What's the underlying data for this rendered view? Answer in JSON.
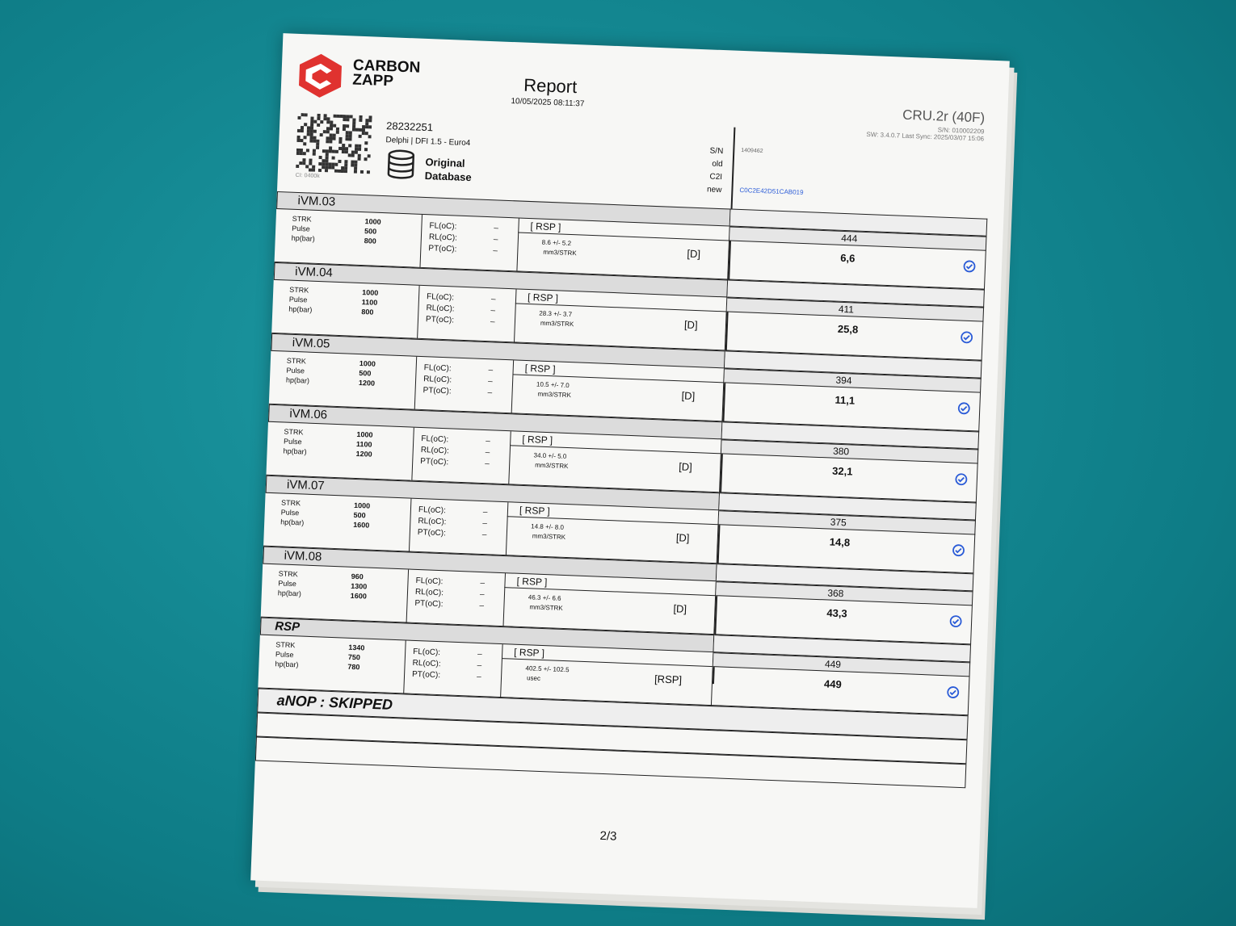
{
  "header": {
    "brand": [
      "CARBON",
      "ZAPP"
    ],
    "title": "Report",
    "date": "10/05/2025 08:11:37",
    "device": "CRU.2r (40F)",
    "device_lines": [
      "S/N: 010002209",
      "SW: 3.4.0.7 Last Sync: 2025/03/07 15:06"
    ]
  },
  "part": {
    "code": "CI: 0400k",
    "number": "28232251",
    "description": "Delphi | DFI 1.5 - Euro4",
    "database": [
      "Original",
      "Database"
    ]
  },
  "ident": {
    "labels": [
      "S/N",
      "old",
      "C2I",
      "new"
    ],
    "serial": "1409462",
    "new_code": "C0C2E42D51CAB019"
  },
  "labels": {
    "params": [
      "STRK",
      "Pulse",
      "hp(bar)"
    ],
    "temps": [
      "FL(oC):",
      "RL(oC):",
      "PT(oC):"
    ],
    "rsp": "[ RSP ]"
  },
  "tests": [
    {
      "name": "iVM.03",
      "params": [
        "1000",
        "500",
        "800"
      ],
      "temps": [
        "–",
        "–",
        "–"
      ],
      "tolerance": "8.6 +/- 5.2",
      "unit": "mm3/STRK",
      "flag": "[D]",
      "measured": "444",
      "result": "6,6"
    },
    {
      "name": "iVM.04",
      "params": [
        "1000",
        "1100",
        "800"
      ],
      "temps": [
        "–",
        "–",
        "–"
      ],
      "tolerance": "28.3 +/- 3.7",
      "unit": "mm3/STRK",
      "flag": "[D]",
      "measured": "411",
      "result": "25,8"
    },
    {
      "name": "iVM.05",
      "params": [
        "1000",
        "500",
        "1200"
      ],
      "temps": [
        "–",
        "–",
        "–"
      ],
      "tolerance": "10.5 +/- 7.0",
      "unit": "mm3/STRK",
      "flag": "[D]",
      "measured": "394",
      "result": "11,1"
    },
    {
      "name": "iVM.06",
      "params": [
        "1000",
        "1100",
        "1200"
      ],
      "temps": [
        "–",
        "–",
        "–"
      ],
      "tolerance": "34.0 +/- 5.0",
      "unit": "mm3/STRK",
      "flag": "[D]",
      "measured": "380",
      "result": "32,1"
    },
    {
      "name": "iVM.07",
      "params": [
        "1000",
        "500",
        "1600"
      ],
      "temps": [
        "–",
        "–",
        "–"
      ],
      "tolerance": "14.8 +/- 8.0",
      "unit": "mm3/STRK",
      "flag": "[D]",
      "measured": "375",
      "result": "14,8"
    },
    {
      "name": "iVM.08",
      "params": [
        "960",
        "1300",
        "1600"
      ],
      "temps": [
        "–",
        "–",
        "–"
      ],
      "tolerance": "46.3 +/- 6.6",
      "unit": "mm3/STRK",
      "flag": "[D]",
      "measured": "368",
      "result": "43,3"
    },
    {
      "name": "RSP",
      "params": [
        "1340",
        "750",
        "780"
      ],
      "temps": [
        "–",
        "–",
        "–"
      ],
      "tolerance": "402.5 +/- 102.5",
      "unit": "usec",
      "flag": "[RSP]",
      "measured": "449",
      "result": "449"
    }
  ],
  "footer": {
    "skipped": "aNOP : SKIPPED",
    "page": "2/3"
  }
}
